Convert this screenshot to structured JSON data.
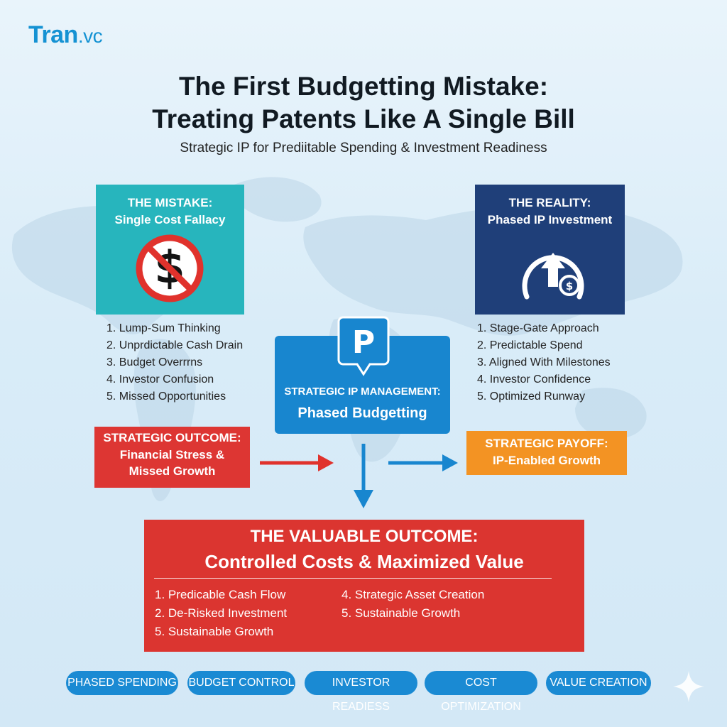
{
  "logo": {
    "name": "Tran",
    "tld": ".vc"
  },
  "title": {
    "line1": "The First Budgetting Mistake:",
    "line2": "Treating Patents Like A Single Bill"
  },
  "subtitle": "Strategic IP for Prediitable Spending & Investment Readiness",
  "mistake": {
    "heading": "THE MISTAKE:",
    "subheading": "Single Cost Fallacy",
    "icon": "no-dollar-icon",
    "items": [
      "1. Lump-Sum Thinking",
      "2. Unprdictable Cash Drain",
      "3. Budget Overrrns",
      "4. Investor Confusion",
      "5. Missed Opportunities"
    ]
  },
  "reality": {
    "heading": "THE REALITY:",
    "subheading": "Phased IP Investment",
    "icon": "growth-dollar-icon",
    "items": [
      "1. Stage-Gate Approach",
      "2. Predictable Spend",
      "3. Aligned With Milestones",
      "4. Investor Confidence",
      "5. Optimized Runway"
    ]
  },
  "central": {
    "badge": "P",
    "heading": "STRATEGIC IP MANAGEMENT:",
    "subheading": "Phased Budgetting"
  },
  "strategic_outcome": {
    "heading": "STRATEGIC OUTCOME:",
    "line1": "Financial Stress &",
    "line2": "Missed Growth"
  },
  "strategic_payoff": {
    "heading": "STRATEGIC PAYOFF:",
    "line1": "IP-Enabled Growth"
  },
  "valuable": {
    "heading": "THE VALUABLE OUTCOME:",
    "subheading": "Controlled Costs & Maximized Value",
    "col1": [
      "1. Predicable Cash Flow",
      "2. De-Risked Investment",
      "5. Sustainable Growth"
    ],
    "col2": [
      "4. Strategic Asset Creation",
      "5. Sustainable Growth"
    ]
  },
  "pills": [
    "PHASED SPENDING",
    "BUDGET CONTROL",
    "INVESTOR READIESS",
    "COST OPTIMIZATION",
    "VALUE CREATION"
  ],
  "colors": {
    "teal": "#27b5bd",
    "navy": "#1f3f79",
    "blue": "#1886cf",
    "red": "#db3530",
    "orange": "#f39323",
    "logo": "#1592d3"
  }
}
